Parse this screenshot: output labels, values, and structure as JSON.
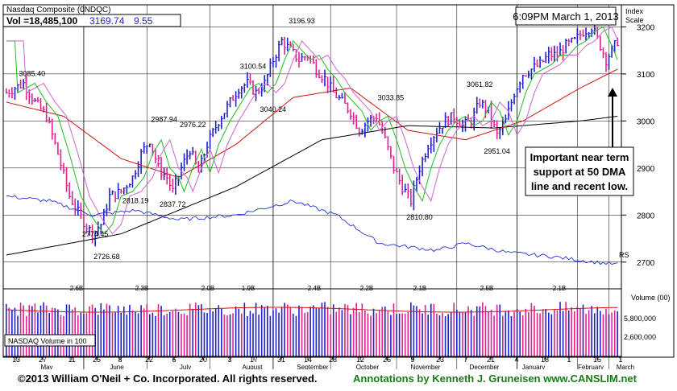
{
  "header": {
    "title": "Nasdaq Composite  (0NDQC)",
    "vol_label": "Vol =18,485,100",
    "close_value": "3169.74",
    "change_value": "9.55",
    "datetime": "6:09PM March 1, 2013",
    "index_scale_line1": "Index",
    "index_scale_line2": "Scale"
  },
  "annotation": {
    "line1": "Important near term",
    "line2": "support at 50 DMA",
    "line3": "line and recent low."
  },
  "volume_panel": {
    "label": "NASDAQ Volume in 100",
    "axis_title": "Volume (00)",
    "axis_values": [
      "5,800,000",
      "2,600,000"
    ],
    "markers": [
      "2.6B",
      "2.3B",
      "2.0B",
      "1.9B",
      "2.4B",
      "2.2B",
      "2.1B",
      "2.5B",
      "2.1B"
    ]
  },
  "rs_label": "RS",
  "footer": {
    "copyright": "©2013 William O'Neil + Co. Incorporated. All rights reserved.",
    "annotations": "Annotations by Kenneth J. Gruneisen www.CANSLIM.net"
  },
  "colors": {
    "up_bar": "#1f1fcc",
    "down_bar": "#e0208f",
    "ma50": "#d01010",
    "ma200": "#000000",
    "ema_green": "#22bb22",
    "ema_pink": "#cc66cc",
    "rs_line": "#1f2fd0",
    "grid": "#000000",
    "footer_right": "#1a7a1a"
  },
  "chart_data": {
    "type": "candlestick",
    "title": "Nasdaq Composite  (0NDQC)",
    "y_axis": {
      "ticks": [
        2700,
        2800,
        2900,
        3000,
        3100,
        3200
      ],
      "range": [
        2650,
        3240
      ],
      "side": "right"
    },
    "x_axis": {
      "tick_labels": [
        "13",
        "27",
        "11",
        "25",
        "8",
        "22",
        "6",
        "20",
        "3",
        "17",
        "31",
        "14",
        "28",
        "12",
        "26",
        "9",
        "23",
        "7",
        "21",
        "4",
        "18",
        "1",
        "15",
        "1"
      ],
      "month_labels": [
        "May",
        "June",
        "July",
        "August",
        "September",
        "October",
        "November",
        "December",
        "January",
        "February",
        "March"
      ]
    },
    "price_labels": [
      {
        "label": "3085.40",
        "value": 3085.4
      },
      {
        "label": "2774.45",
        "value": 2774.45
      },
      {
        "label": "2726.68",
        "value": 2726.68
      },
      {
        "label": "2818.19",
        "value": 2818.19
      },
      {
        "label": "2987.94",
        "value": 2987.94
      },
      {
        "label": "2837.72",
        "value": 2837.72
      },
      {
        "label": "2976.22",
        "value": 2976.22
      },
      {
        "label": "3100.54",
        "value": 3100.54
      },
      {
        "label": "3040.24",
        "value": 3040.24
      },
      {
        "label": "3196.93",
        "value": 3196.93
      },
      {
        "label": "3033.85",
        "value": 3033.85
      },
      {
        "label": "2810.80",
        "value": 2810.8
      },
      {
        "label": "3061.82",
        "value": 3061.82
      },
      {
        "label": "2951.04",
        "value": 2951.04
      }
    ],
    "anchors": [
      {
        "i": 0,
        "c": 3060
      },
      {
        "i": 6,
        "c": 3080
      },
      {
        "i": 10,
        "c": 3040
      },
      {
        "i": 14,
        "c": 3010
      },
      {
        "i": 18,
        "c": 2930
      },
      {
        "i": 22,
        "c": 2840
      },
      {
        "i": 26,
        "c": 2795
      },
      {
        "i": 30,
        "c": 2760
      },
      {
        "i": 33,
        "c": 2780
      },
      {
        "i": 36,
        "c": 2840
      },
      {
        "i": 40,
        "c": 2850
      },
      {
        "i": 44,
        "c": 2880
      },
      {
        "i": 47,
        "c": 2930
      },
      {
        "i": 50,
        "c": 2960
      },
      {
        "i": 53,
        "c": 2900
      },
      {
        "i": 56,
        "c": 2880
      },
      {
        "i": 58,
        "c": 2850
      },
      {
        "i": 61,
        "c": 2900
      },
      {
        "i": 64,
        "c": 2940
      },
      {
        "i": 67,
        "c": 2890
      },
      {
        "i": 70,
        "c": 2950
      },
      {
        "i": 74,
        "c": 3000
      },
      {
        "i": 78,
        "c": 3040
      },
      {
        "i": 81,
        "c": 3070
      },
      {
        "i": 84,
        "c": 3080
      },
      {
        "i": 87,
        "c": 3060
      },
      {
        "i": 90,
        "c": 3080
      },
      {
        "i": 93,
        "c": 3130
      },
      {
        "i": 96,
        "c": 3170
      },
      {
        "i": 99,
        "c": 3150
      },
      {
        "i": 102,
        "c": 3130
      },
      {
        "i": 105,
        "c": 3140
      },
      {
        "i": 108,
        "c": 3110
      },
      {
        "i": 111,
        "c": 3090
      },
      {
        "i": 114,
        "c": 3060
      },
      {
        "i": 117,
        "c": 3040
      },
      {
        "i": 120,
        "c": 3020
      },
      {
        "i": 123,
        "c": 2980
      },
      {
        "i": 126,
        "c": 3000
      },
      {
        "i": 129,
        "c": 3010
      },
      {
        "i": 132,
        "c": 2960
      },
      {
        "i": 135,
        "c": 2900
      },
      {
        "i": 138,
        "c": 2860
      },
      {
        "i": 141,
        "c": 2830
      },
      {
        "i": 144,
        "c": 2900
      },
      {
        "i": 147,
        "c": 2950
      },
      {
        "i": 150,
        "c": 2980
      },
      {
        "i": 153,
        "c": 3000
      },
      {
        "i": 156,
        "c": 3010
      },
      {
        "i": 159,
        "c": 2990
      },
      {
        "i": 162,
        "c": 3000
      },
      {
        "i": 165,
        "c": 3040
      },
      {
        "i": 168,
        "c": 3020
      },
      {
        "i": 171,
        "c": 2970
      },
      {
        "i": 174,
        "c": 3000
      },
      {
        "i": 177,
        "c": 3060
      },
      {
        "i": 180,
        "c": 3100
      },
      {
        "i": 183,
        "c": 3110
      },
      {
        "i": 186,
        "c": 3120
      },
      {
        "i": 189,
        "c": 3140
      },
      {
        "i": 192,
        "c": 3140
      },
      {
        "i": 195,
        "c": 3160
      },
      {
        "i": 198,
        "c": 3170
      },
      {
        "i": 201,
        "c": 3190
      },
      {
        "i": 204,
        "c": 3200
      },
      {
        "i": 207,
        "c": 3160
      },
      {
        "i": 209,
        "c": 3130
      },
      {
        "i": 211,
        "c": 3150
      },
      {
        "i": 213,
        "c": 3170
      }
    ],
    "series": [
      {
        "name": "50 DMA",
        "anchors": [
          [
            0,
            3040
          ],
          [
            20,
            3010
          ],
          [
            40,
            2920
          ],
          [
            60,
            2880
          ],
          [
            80,
            2950
          ],
          [
            100,
            3050
          ],
          [
            120,
            3070
          ],
          [
            140,
            2980
          ],
          [
            160,
            2960
          ],
          [
            180,
            3000
          ],
          [
            200,
            3070
          ],
          [
            213,
            3110
          ]
        ]
      },
      {
        "name": "200 DMA",
        "anchors": [
          [
            0,
            2715
          ],
          [
            40,
            2760
          ],
          [
            80,
            2860
          ],
          [
            110,
            2960
          ],
          [
            140,
            2990
          ],
          [
            170,
            2985
          ],
          [
            200,
            3000
          ],
          [
            213,
            3010
          ]
        ]
      },
      {
        "name": "RS",
        "anchors": [
          [
            0,
            2840
          ],
          [
            15,
            2830
          ],
          [
            30,
            2800
          ],
          [
            45,
            2810
          ],
          [
            60,
            2790
          ],
          [
            80,
            2800
          ],
          [
            100,
            2830
          ],
          [
            115,
            2800
          ],
          [
            130,
            2740
          ],
          [
            150,
            2725
          ],
          [
            160,
            2740
          ],
          [
            175,
            2720
          ],
          [
            190,
            2712
          ],
          [
            205,
            2700
          ],
          [
            213,
            2695
          ]
        ]
      }
    ]
  }
}
